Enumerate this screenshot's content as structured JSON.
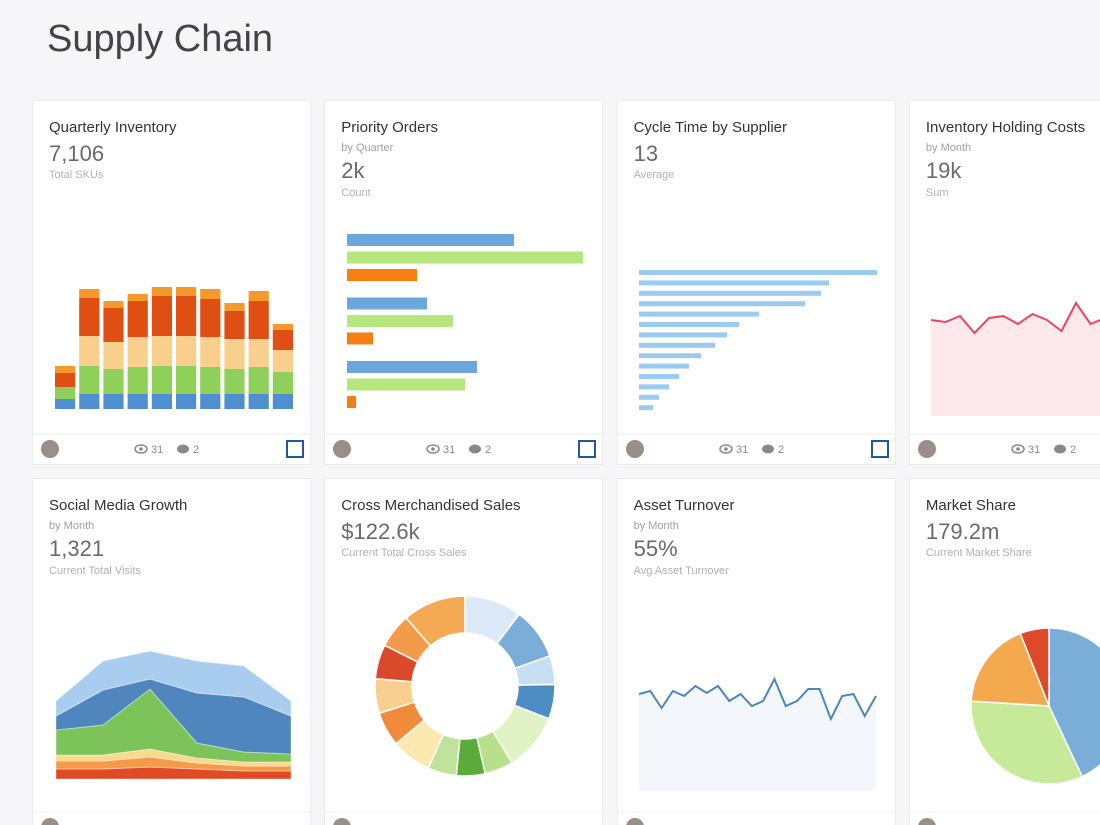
{
  "header": {
    "title": "Supply Chain"
  },
  "cards": [
    {
      "title": "Quarterly Inventory",
      "value": "7,106",
      "caption": "Total SKUs",
      "footer": {
        "views": 31,
        "comments": 2
      },
      "chart": {
        "type": "stacked-bar",
        "ylim": [
          0,
          130
        ],
        "series": [
          {
            "color": "#4f8fd0",
            "values": [
              10,
              15,
              15,
              15,
              15,
              15,
              15,
              15,
              15,
              15
            ]
          },
          {
            "color": "#8fd05a",
            "values": [
              12,
              28,
              25,
              27,
              28,
              28,
              27,
              25,
              27,
              22
            ]
          },
          {
            "color": "#f8cf8c",
            "values": [
              0,
              30,
              27,
              30,
              30,
              30,
              30,
              30,
              28,
              22
            ]
          },
          {
            "color": "#df4f14",
            "values": [
              14,
              38,
              34,
              36,
              40,
              40,
              38,
              28,
              38,
              20
            ]
          },
          {
            "color": "#f49a2c",
            "values": [
              7,
              9,
              7,
              7,
              9,
              9,
              10,
              8,
              10,
              6
            ]
          }
        ]
      }
    },
    {
      "title": "Priority Orders",
      "subtitle": "by Quarter",
      "value": "2k",
      "caption": "Count",
      "footer": {
        "views": 31,
        "comments": 2
      },
      "chart": {
        "type": "hbar-grouped",
        "xlim": [
          0,
          240
        ],
        "series": [
          {
            "color": "#6ba6dc",
            "values": [
              167,
              80,
              130
            ]
          },
          {
            "color": "#b6e67e",
            "values": [
              236,
              106,
              118
            ]
          },
          {
            "color": "#f57f12",
            "values": [
              70,
              26,
              9
            ]
          }
        ]
      }
    },
    {
      "title": "Cycle Time by Supplier",
      "value": "13",
      "caption": "Average",
      "footer": {
        "views": 31,
        "comments": 2
      },
      "chart": {
        "type": "hbar",
        "xlim": [
          0,
          240
        ],
        "color": "#9ccbf0",
        "values": [
          238,
          190,
          182,
          166,
          120,
          100,
          88,
          76,
          62,
          50,
          40,
          30,
          20,
          14
        ]
      }
    },
    {
      "title": "Inventory Holding Costs",
      "subtitle": "by Month",
      "value": "19k",
      "caption": "Sum",
      "footer": {
        "views": 31,
        "comments": 2
      },
      "chart": {
        "type": "area",
        "ylim": [
          0,
          120
        ],
        "color": "#e8485f",
        "fill": "#fde8ec",
        "values": [
          96,
          94,
          100,
          83,
          98,
          100,
          92,
          102,
          96,
          85,
          113,
          92,
          98
        ]
      }
    },
    {
      "title": "Social Media Growth",
      "subtitle": "by Month",
      "value": "1,321",
      "caption": "Current Total Visits",
      "chart": {
        "type": "stacked-area",
        "ylim": [
          0,
          128
        ],
        "series": [
          {
            "color": "#e04a24",
            "values": [
              10,
              10,
              12,
              10,
              8,
              8
            ]
          },
          {
            "color": "#f59a48",
            "values": [
              8,
              8,
              10,
              6,
              5,
              5
            ]
          },
          {
            "color": "#fbd98a",
            "values": [
              6,
              6,
              8,
              5,
              4,
              4
            ]
          },
          {
            "color": "#7cc45a",
            "values": [
              25,
              30,
              60,
              15,
              10,
              8
            ]
          },
          {
            "color": "#4f86bd",
            "values": [
              14,
              35,
              10,
              50,
              55,
              38
            ]
          },
          {
            "color": "#a9cdee",
            "values": [
              15,
              29,
              28,
              32,
              31,
              15
            ]
          }
        ]
      }
    },
    {
      "title": "Cross Merchandised Sales",
      "value": "$122.6k",
      "caption": "Current Total Cross Sales",
      "chart": {
        "type": "donut",
        "values": [
          10,
          9,
          5,
          6,
          10,
          5,
          5,
          5,
          7,
          6,
          6,
          6,
          6,
          11
        ],
        "colors": [
          "#dce9f8",
          "#7aaed8",
          "#c7dff3",
          "#4e8cc4",
          "#dff3c4",
          "#b6e08a",
          "#5aab3a",
          "#bfe39a",
          "#fbe9b0",
          "#f28a3c",
          "#f9cf8f",
          "#d9492b",
          "#f39b4a",
          "#f4a954"
        ]
      }
    },
    {
      "title": "Asset Turnover",
      "subtitle": "by Month",
      "value": "55%",
      "caption": "Avg Asset Turnover",
      "chart": {
        "type": "line",
        "ylim": [
          0,
          120
        ],
        "color": "#4d86bd",
        "fill": "#f3f7fc",
        "values": [
          97,
          100,
          83,
          100,
          95,
          105,
          98,
          105,
          90,
          97,
          85,
          90,
          112,
          85,
          90,
          102,
          102,
          72,
          95,
          97,
          75,
          95
        ]
      }
    },
    {
      "title": "Market Share",
      "value": "179.2m",
      "caption": "Current Market Share",
      "chart": {
        "type": "pie",
        "values": [
          43,
          33,
          18,
          6
        ],
        "colors": [
          "#7aaed8",
          "#c6ea9a",
          "#f5a94f",
          "#dd4a2a"
        ]
      }
    }
  ]
}
